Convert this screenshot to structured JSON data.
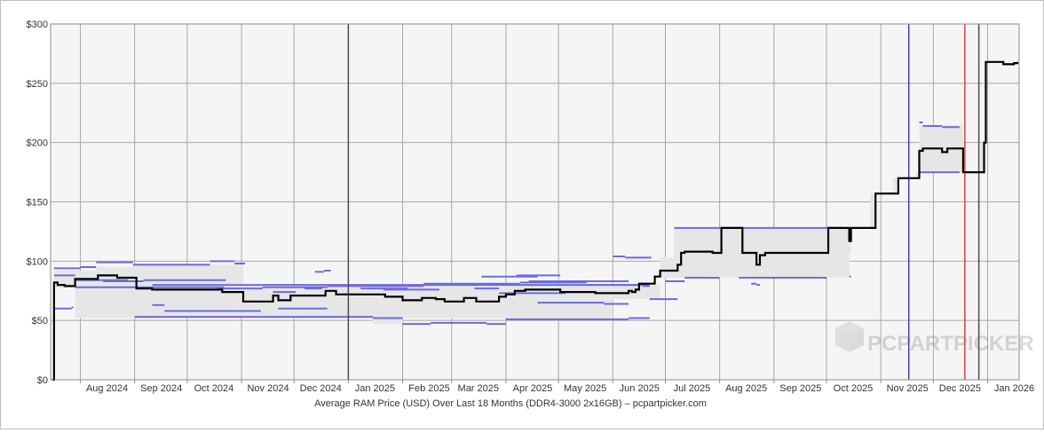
{
  "chart_data": {
    "type": "line",
    "title": "",
    "caption": "Average RAM Price (USD) Over Last 18 Months (DDR4-3000 2x16GB) – pcpartpicker.com",
    "watermark": "PCPARTPICKER",
    "xlabel": "",
    "ylabel": "",
    "ylim": [
      0,
      300
    ],
    "y_ticks": [
      0,
      50,
      100,
      150,
      200,
      250,
      300
    ],
    "y_tick_labels": [
      "$0",
      "$50",
      "$100",
      "$150",
      "$200",
      "$250",
      "$300"
    ],
    "xlim": [
      "2024-07-15",
      "2026-01-19"
    ],
    "x_ticks": [
      {
        "date": "2024-08-01",
        "label": "Aug 2024"
      },
      {
        "date": "2024-09-01",
        "label": "Sep 2024"
      },
      {
        "date": "2024-10-01",
        "label": "Oct 2024"
      },
      {
        "date": "2024-11-01",
        "label": "Nov 2024"
      },
      {
        "date": "2024-12-01",
        "label": "Dec 2024"
      },
      {
        "date": "2025-01-01",
        "label": "Jan 2025"
      },
      {
        "date": "2025-02-01",
        "label": "Feb 2025"
      },
      {
        "date": "2025-03-01",
        "label": "Mar 2025"
      },
      {
        "date": "2025-04-01",
        "label": "Apr 2025"
      },
      {
        "date": "2025-05-01",
        "label": "May 2025"
      },
      {
        "date": "2025-06-01",
        "label": "Jun 2025"
      },
      {
        "date": "2025-07-01",
        "label": "Jul 2025"
      },
      {
        "date": "2025-08-01",
        "label": "Aug 2025"
      },
      {
        "date": "2025-09-01",
        "label": "Sep 2025"
      },
      {
        "date": "2025-10-01",
        "label": "Oct 2025"
      },
      {
        "date": "2025-11-01",
        "label": "Nov 2025"
      },
      {
        "date": "2025-12-01",
        "label": "Dec 2025"
      },
      {
        "date": "2026-01-01",
        "label": "Jan 2026"
      }
    ],
    "grid": true,
    "series": [
      {
        "role": "average",
        "color": "#000000",
        "points": [
          [
            "2024-07-16",
            0
          ],
          [
            "2024-07-17",
            82
          ],
          [
            "2024-07-19",
            80
          ],
          [
            "2024-07-22",
            80
          ],
          [
            "2024-07-23",
            79
          ],
          [
            "2024-07-28",
            79
          ],
          [
            "2024-07-29",
            85
          ],
          [
            "2024-08-10",
            85
          ],
          [
            "2024-08-11",
            88
          ],
          [
            "2024-08-21",
            88
          ],
          [
            "2024-08-22",
            86
          ],
          [
            "2024-09-01",
            86
          ],
          [
            "2024-09-02",
            77
          ],
          [
            "2024-09-10",
            77
          ],
          [
            "2024-09-11",
            76
          ],
          [
            "2024-10-20",
            76
          ],
          [
            "2024-10-21",
            74
          ],
          [
            "2024-11-01",
            74
          ],
          [
            "2024-11-02",
            66
          ],
          [
            "2024-11-15",
            66
          ],
          [
            "2024-11-19",
            71
          ],
          [
            "2024-11-22",
            67
          ],
          [
            "2024-11-26",
            67
          ],
          [
            "2024-11-29",
            71
          ],
          [
            "2024-12-18",
            71
          ],
          [
            "2024-12-19",
            75
          ],
          [
            "2024-12-23",
            75
          ],
          [
            "2024-12-25",
            72
          ],
          [
            "2025-01-20",
            72
          ],
          [
            "2025-01-22",
            70
          ],
          [
            "2025-01-28",
            70
          ],
          [
            "2025-02-01",
            67
          ],
          [
            "2025-02-08",
            67
          ],
          [
            "2025-02-12",
            69
          ],
          [
            "2025-02-20",
            68
          ],
          [
            "2025-02-25",
            66
          ],
          [
            "2025-03-05",
            66
          ],
          [
            "2025-03-08",
            69
          ],
          [
            "2025-03-13",
            69
          ],
          [
            "2025-03-15",
            66
          ],
          [
            "2025-03-25",
            66
          ],
          [
            "2025-03-28",
            70
          ],
          [
            "2025-04-01",
            72
          ],
          [
            "2025-04-03",
            72
          ],
          [
            "2025-04-06",
            75
          ],
          [
            "2025-04-10",
            75
          ],
          [
            "2025-04-12",
            76
          ],
          [
            "2025-05-01",
            76
          ],
          [
            "2025-05-02",
            74
          ],
          [
            "2025-05-20",
            74
          ],
          [
            "2025-05-22",
            73
          ],
          [
            "2025-06-08",
            73
          ],
          [
            "2025-06-10",
            75
          ],
          [
            "2025-06-12",
            74
          ],
          [
            "2025-06-14",
            76
          ],
          [
            "2025-06-16",
            81
          ],
          [
            "2025-06-22",
            81
          ],
          [
            "2025-06-25",
            87
          ],
          [
            "2025-06-28",
            92
          ],
          [
            "2025-07-06",
            92
          ],
          [
            "2025-07-08",
            97
          ],
          [
            "2025-07-10",
            107
          ],
          [
            "2025-07-12",
            108
          ],
          [
            "2025-07-26",
            108
          ],
          [
            "2025-07-28",
            107
          ],
          [
            "2025-08-01",
            107
          ],
          [
            "2025-08-02",
            128
          ],
          [
            "2025-08-12",
            128
          ],
          [
            "2025-08-14",
            107
          ],
          [
            "2025-08-19",
            107
          ],
          [
            "2025-08-22",
            97
          ],
          [
            "2025-08-24",
            105
          ],
          [
            "2025-08-27",
            107
          ],
          [
            "2025-10-01",
            107
          ],
          [
            "2025-10-02",
            128
          ],
          [
            "2025-10-13",
            128
          ],
          [
            "2025-10-14",
            117
          ],
          [
            "2025-10-15",
            128
          ],
          [
            "2025-10-26",
            128
          ],
          [
            "2025-10-29",
            157
          ],
          [
            "2025-11-08",
            157
          ],
          [
            "2025-11-11",
            170
          ],
          [
            "2025-11-21",
            170
          ],
          [
            "2025-11-23",
            193
          ],
          [
            "2025-11-25",
            195
          ],
          [
            "2025-12-04",
            195
          ],
          [
            "2025-12-06",
            192
          ],
          [
            "2025-12-09",
            195
          ],
          [
            "2025-12-16",
            195
          ],
          [
            "2025-12-18",
            175
          ],
          [
            "2025-12-28",
            175
          ],
          [
            "2025-12-30",
            200
          ],
          [
            "2025-12-31",
            268
          ],
          [
            "2026-01-06",
            268
          ],
          [
            "2026-01-10",
            266
          ],
          [
            "2026-01-16",
            267
          ],
          [
            "2026-01-18",
            268
          ]
        ]
      }
    ],
    "range_band": {
      "color": "#e6e6e6",
      "upper": [
        [
          "2024-07-17",
          92
        ],
        [
          "2024-08-10",
          95
        ],
        [
          "2024-09-01",
          97
        ],
        [
          "2024-11-02",
          80
        ],
        [
          "2025-06-10",
          80
        ],
        [
          "2025-06-28",
          103
        ],
        [
          "2025-07-06",
          128
        ],
        [
          "2025-10-13",
          128
        ],
        [
          "2025-10-14",
          107
        ],
        [
          "2025-10-15",
          128
        ],
        [
          "2025-10-26",
          128
        ],
        [
          "2025-10-29",
          157
        ],
        [
          "2025-11-08",
          157
        ],
        [
          "2025-11-11",
          170
        ],
        [
          "2025-11-21",
          170
        ],
        [
          "2025-11-23",
          215
        ],
        [
          "2025-12-16",
          215
        ],
        [
          "2025-12-18",
          175
        ],
        [
          "2025-12-28",
          175
        ],
        [
          "2025-12-30",
          200
        ],
        [
          "2025-12-31",
          268
        ],
        [
          "2026-01-18",
          268
        ]
      ],
      "lower": [
        [
          "2024-07-17",
          60
        ],
        [
          "2024-07-29",
          78
        ],
        [
          "2024-09-01",
          52
        ],
        [
          "2025-01-15",
          52
        ],
        [
          "2025-02-01",
          47
        ],
        [
          "2025-04-01",
          52
        ],
        [
          "2025-06-01",
          52
        ],
        [
          "2025-06-28",
          68
        ],
        [
          "2025-07-06",
          86
        ],
        [
          "2025-10-01",
          86
        ],
        [
          "2025-10-13",
          86
        ],
        [
          "2025-10-14",
          87
        ],
        [
          "2025-10-15",
          128
        ],
        [
          "2025-10-26",
          128
        ],
        [
          "2025-10-29",
          157
        ],
        [
          "2025-11-08",
          157
        ],
        [
          "2025-11-11",
          170
        ],
        [
          "2025-11-21",
          170
        ],
        [
          "2025-11-23",
          175
        ],
        [
          "2025-12-16",
          175
        ],
        [
          "2025-12-18",
          175
        ],
        [
          "2025-12-28",
          175
        ],
        [
          "2025-12-30",
          200
        ],
        [
          "2025-12-31",
          268
        ],
        [
          "2026-01-18",
          268
        ]
      ]
    },
    "retailer_prices": {
      "color": "#6b6bdc",
      "segments": [
        [
          "2024-07-17",
          "2024-08-01",
          94
        ],
        [
          "2024-08-01",
          "2024-08-10",
          95
        ],
        [
          "2024-08-10",
          "2024-08-31",
          99
        ],
        [
          "2024-08-31",
          "2024-10-14",
          97
        ],
        [
          "2024-10-14",
          "2024-10-28",
          100
        ],
        [
          "2024-10-28",
          "2024-11-03",
          98
        ],
        [
          "2024-07-29",
          "2024-08-28",
          84
        ],
        [
          "2024-08-14",
          "2024-09-06",
          83
        ],
        [
          "2024-09-06",
          "2024-10-23",
          84
        ],
        [
          "2024-09-11",
          "2024-10-26",
          80
        ],
        [
          "2024-10-26",
          "2025-06-22",
          80
        ],
        [
          "2024-07-17",
          "2024-07-29",
          88
        ],
        [
          "2024-07-29",
          "2024-09-06",
          78
        ],
        [
          "2024-09-06",
          "2024-10-22",
          78
        ],
        [
          "2024-10-18",
          "2024-11-13",
          77
        ],
        [
          "2024-11-13",
          "2024-12-20",
          78
        ],
        [
          "2024-12-20",
          "2025-02-13",
          79
        ],
        [
          "2025-02-13",
          "2025-04-09",
          81
        ],
        [
          "2025-04-09",
          "2025-05-17",
          82
        ],
        [
          "2025-05-17",
          "2025-06-22",
          80
        ],
        [
          "2024-07-17",
          "2024-07-27",
          60
        ],
        [
          "2024-07-27",
          "2024-07-28",
          61
        ],
        [
          "2024-09-11",
          "2024-09-18",
          63
        ],
        [
          "2024-09-18",
          "2024-10-29",
          58
        ],
        [
          "2024-10-29",
          "2024-11-12",
          58
        ],
        [
          "2024-11-22",
          "2024-12-20",
          60
        ],
        [
          "2024-09-01",
          "2025-01-15",
          53
        ],
        [
          "2025-01-15",
          "2025-02-01",
          52
        ],
        [
          "2025-02-01",
          "2025-02-17",
          47
        ],
        [
          "2025-02-17",
          "2025-03-21",
          48
        ],
        [
          "2025-03-21",
          "2025-04-01",
          47
        ],
        [
          "2025-04-01",
          "2025-06-10",
          51
        ],
        [
          "2025-06-10",
          "2025-06-22",
          52
        ],
        [
          "2024-12-13",
          "2024-12-18",
          91
        ],
        [
          "2024-12-18",
          "2024-12-22",
          92
        ],
        [
          "2024-11-19",
          "2024-12-02",
          74
        ],
        [
          "2024-12-07",
          "2024-12-17",
          77
        ],
        [
          "2025-01-08",
          "2025-02-04",
          77
        ],
        [
          "2025-01-21",
          "2025-02-22",
          76
        ],
        [
          "2025-03-14",
          "2025-03-28",
          77
        ],
        [
          "2025-04-07",
          "2025-05-02",
          88
        ],
        [
          "2025-03-18",
          "2025-04-19",
          87
        ],
        [
          "2025-04-14",
          "2025-05-22",
          83
        ],
        [
          "2025-05-14",
          "2025-06-10",
          83
        ],
        [
          "2025-06-18",
          "2025-06-22",
          79
        ],
        [
          "2025-03-28",
          "2025-05-05",
          73
        ],
        [
          "2025-04-19",
          "2025-05-27",
          65
        ],
        [
          "2025-05-27",
          "2025-06-10",
          64
        ],
        [
          "2025-06-01",
          "2025-06-08",
          104
        ],
        [
          "2025-06-08",
          "2025-06-23",
          103
        ],
        [
          "2025-06-22",
          "2025-07-08",
          68
        ],
        [
          "2025-07-01",
          "2025-07-12",
          83
        ],
        [
          "2025-07-12",
          "2025-07-26",
          86
        ],
        [
          "2025-07-26",
          "2025-08-01",
          86
        ],
        [
          "2025-07-06",
          "2025-10-01",
          128
        ],
        [
          "2025-10-01",
          "2025-10-13",
          128
        ],
        [
          "2025-08-12",
          "2025-10-01",
          86
        ],
        [
          "2025-08-19",
          "2025-08-22",
          81
        ],
        [
          "2025-08-22",
          "2025-08-24",
          80
        ],
        [
          "2025-10-14",
          "2025-10-15",
          87
        ],
        [
          "2025-11-23",
          "2025-11-25",
          217
        ],
        [
          "2025-11-25",
          "2025-12-06",
          214
        ],
        [
          "2025-12-06",
          "2025-12-16",
          213
        ],
        [
          "2025-11-23",
          "2025-12-16",
          175
        ],
        [
          "2025-11-21",
          "2025-11-23",
          170
        ]
      ]
    },
    "vertical_markers": [
      {
        "date": "2025-01-01",
        "color": "#4d4d4d"
      },
      {
        "date": "2025-11-17",
        "color": "#3f3fb4"
      },
      {
        "date": "2025-12-19",
        "color": "#e04040"
      },
      {
        "date": "2025-12-27",
        "color": "#4d4d4d"
      }
    ]
  }
}
